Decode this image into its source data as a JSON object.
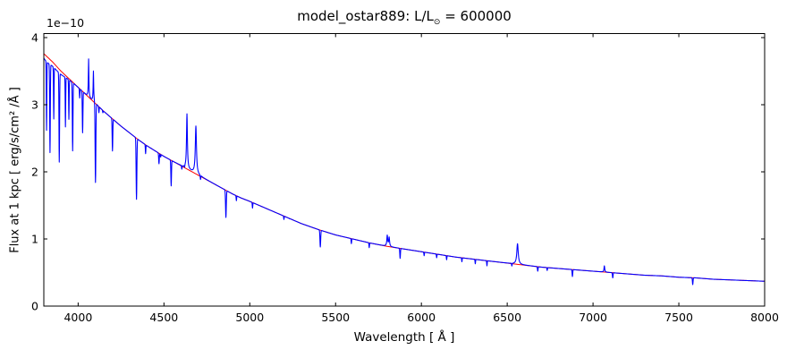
{
  "figure": {
    "title": {
      "prefix": "model_ostar889: L/L",
      "sub": "⊙",
      "suffix": " = 600000"
    },
    "xlabel": "Wavelength [ Å ]",
    "ylabel": "Flux at 1 kpc [ erg/s/cm² /Å ]",
    "offset_text": "1e−10",
    "background_color": "#ffffff",
    "spine_color": "#000000"
  },
  "chart_data": {
    "type": "line",
    "title": "model_ostar889: L/L⊙ = 600000",
    "xlabel": "Wavelength [ Å ]",
    "ylabel": "Flux at 1 kpc [ erg/s/cm² /Å ]",
    "y_offset_factor": "1e−10",
    "xlim": [
      3800,
      8000
    ],
    "ylim": [
      0,
      4.06
    ],
    "xticks": [
      4000,
      4500,
      5000,
      5500,
      6000,
      6500,
      7000,
      7500,
      8000
    ],
    "yticks": [
      0,
      1,
      2,
      3,
      4
    ],
    "grid": false,
    "legend": null,
    "tick_direction": "in",
    "series": [
      {
        "name": "continuum fit",
        "role": "continuum",
        "color": "#ff0000"
      },
      {
        "name": "model spectrum",
        "role": "spectrum",
        "color": "#0000ff"
      }
    ],
    "continuum_anchors": [
      [
        3800,
        3.76
      ],
      [
        3850,
        3.64
      ],
      [
        3900,
        3.5
      ],
      [
        3950,
        3.38
      ],
      [
        4000,
        3.26
      ],
      [
        4050,
        3.14
      ],
      [
        4100,
        3.02
      ],
      [
        4150,
        2.9
      ],
      [
        4200,
        2.79
      ],
      [
        4250,
        2.68
      ],
      [
        4300,
        2.58
      ],
      [
        4350,
        2.48
      ],
      [
        4400,
        2.39
      ],
      [
        4450,
        2.31
      ],
      [
        4500,
        2.23
      ],
      [
        4550,
        2.16
      ],
      [
        4600,
        2.09
      ],
      [
        4650,
        2.02
      ],
      [
        4700,
        1.95
      ],
      [
        4750,
        1.88
      ],
      [
        4800,
        1.81
      ],
      [
        4850,
        1.74
      ],
      [
        4900,
        1.67
      ],
      [
        4950,
        1.61
      ],
      [
        5000,
        1.56
      ],
      [
        5100,
        1.45
      ],
      [
        5200,
        1.34
      ],
      [
        5300,
        1.23
      ],
      [
        5400,
        1.14
      ],
      [
        5500,
        1.06
      ],
      [
        5600,
        1.0
      ],
      [
        5700,
        0.94
      ],
      [
        5800,
        0.89
      ],
      [
        5900,
        0.85
      ],
      [
        6000,
        0.81
      ],
      [
        6100,
        0.77
      ],
      [
        6200,
        0.73
      ],
      [
        6300,
        0.7
      ],
      [
        6400,
        0.67
      ],
      [
        6500,
        0.64
      ],
      [
        6600,
        0.61
      ],
      [
        6700,
        0.58
      ],
      [
        6800,
        0.56
      ],
      [
        6900,
        0.54
      ],
      [
        7000,
        0.52
      ],
      [
        7100,
        0.5
      ],
      [
        7200,
        0.48
      ],
      [
        7300,
        0.46
      ],
      [
        7400,
        0.45
      ],
      [
        7500,
        0.43
      ],
      [
        7600,
        0.42
      ],
      [
        7700,
        0.4
      ],
      [
        7800,
        0.39
      ],
      [
        7900,
        0.38
      ],
      [
        8000,
        0.37
      ]
    ],
    "absorption_lines": [
      {
        "wavelength": 3816,
        "flux_min": 2.7,
        "width": 2
      },
      {
        "wavelength": 3836,
        "flux_min": 2.36,
        "width": 2.5
      },
      {
        "wavelength": 3858,
        "flux_min": 2.85,
        "width": 2
      },
      {
        "wavelength": 3890,
        "flux_min": 2.2,
        "width": 2.5
      },
      {
        "wavelength": 3926,
        "flux_min": 2.7,
        "width": 2
      },
      {
        "wavelength": 3946,
        "flux_min": 2.8,
        "width": 2
      },
      {
        "wavelength": 3968,
        "flux_min": 2.32,
        "width": 2.5
      },
      {
        "wavelength": 4009,
        "flux_min": 3.1,
        "width": 2
      },
      {
        "wavelength": 4026,
        "flux_min": 2.58,
        "width": 2.5
      },
      {
        "wavelength": 4101,
        "flux_min": 1.83,
        "width": 3
      },
      {
        "wavelength": 4121,
        "flux_min": 2.88,
        "width": 2
      },
      {
        "wavelength": 4144,
        "flux_min": 2.88,
        "width": 2
      },
      {
        "wavelength": 4200,
        "flux_min": 2.31,
        "width": 2.5
      },
      {
        "wavelength": 4340,
        "flux_min": 1.59,
        "width": 3
      },
      {
        "wavelength": 4393,
        "flux_min": 2.27,
        "width": 2
      },
      {
        "wavelength": 4471,
        "flux_min": 2.12,
        "width": 2.5
      },
      {
        "wavelength": 4481,
        "flux_min": 2.22,
        "width": 2
      },
      {
        "wavelength": 4542,
        "flux_min": 1.79,
        "width": 2.5
      },
      {
        "wavelength": 4604,
        "flux_min": 2.03,
        "width": 2
      },
      {
        "wavelength": 4620,
        "flux_min": 2.03,
        "width": 2
      },
      {
        "wavelength": 4713,
        "flux_min": 1.87,
        "width": 2
      },
      {
        "wavelength": 4861,
        "flux_min": 1.32,
        "width": 3
      },
      {
        "wavelength": 4922,
        "flux_min": 1.57,
        "width": 2
      },
      {
        "wavelength": 5016,
        "flux_min": 1.46,
        "width": 2
      },
      {
        "wavelength": 5199,
        "flux_min": 1.29,
        "width": 2
      },
      {
        "wavelength": 5232,
        "flux_min": 1.3,
        "width": 2
      },
      {
        "wavelength": 5411,
        "flux_min": 0.88,
        "width": 3
      },
      {
        "wavelength": 5592,
        "flux_min": 0.93,
        "width": 2
      },
      {
        "wavelength": 5696,
        "flux_min": 0.87,
        "width": 2
      },
      {
        "wavelength": 5876,
        "flux_min": 0.71,
        "width": 2.5
      },
      {
        "wavelength": 6016,
        "flux_min": 0.75,
        "width": 2
      },
      {
        "wavelength": 6089,
        "flux_min": 0.72,
        "width": 2
      },
      {
        "wavelength": 6147,
        "flux_min": 0.69,
        "width": 2
      },
      {
        "wavelength": 6236,
        "flux_min": 0.66,
        "width": 2
      },
      {
        "wavelength": 6314,
        "flux_min": 0.63,
        "width": 2
      },
      {
        "wavelength": 6382,
        "flux_min": 0.6,
        "width": 2
      },
      {
        "wavelength": 6527,
        "flux_min": 0.59,
        "width": 2
      },
      {
        "wavelength": 6678,
        "flux_min": 0.52,
        "width": 2.5
      },
      {
        "wavelength": 6733,
        "flux_min": 0.53,
        "width": 2
      },
      {
        "wavelength": 6880,
        "flux_min": 0.44,
        "width": 2.5
      },
      {
        "wavelength": 7115,
        "flux_min": 0.42,
        "width": 2.5
      },
      {
        "wavelength": 7581,
        "flux_min": 0.32,
        "width": 2.5
      }
    ],
    "emission_lines": [
      {
        "wavelength": 4061,
        "flux_peak": 3.68,
        "width": 1.8
      },
      {
        "wavelength": 4089,
        "flux_peak": 3.5,
        "width": 1.8
      },
      {
        "wavelength": 4634,
        "flux_peak": 2.86,
        "width": 3
      },
      {
        "wavelength": 4686,
        "flux_peak": 2.68,
        "width": 4
      },
      {
        "wavelength": 5801,
        "flux_peak": 1.05,
        "width": 3
      },
      {
        "wavelength": 5812,
        "flux_peak": 1.02,
        "width": 3
      },
      {
        "wavelength": 6560,
        "flux_peak": 0.93,
        "width": 5
      },
      {
        "wavelength": 7066,
        "flux_peak": 0.6,
        "width": 2.5
      }
    ],
    "blanket_depressions": [
      {
        "center": 3812,
        "width": 30,
        "depth": 0.05
      },
      {
        "center": 3870,
        "width": 70,
        "depth": 0.06
      }
    ]
  }
}
